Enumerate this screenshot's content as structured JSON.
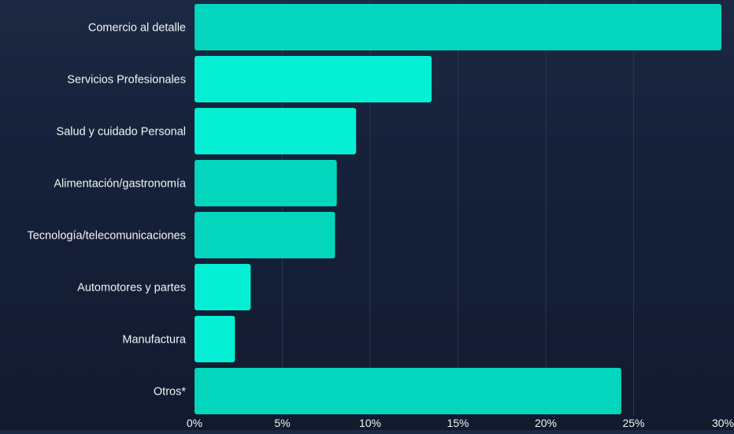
{
  "chart_data": {
    "type": "bar",
    "orientation": "horizontal",
    "title": "",
    "xlabel": "",
    "ylabel": "",
    "categories": [
      "Comercio al detalle",
      "Servicios Profesionales",
      "Salud y cuidado Personal",
      "Alimentación/gastronomía",
      "Tecnología/telecomunicaciones",
      "Automotores y partes",
      "Manufactura",
      "Otros*"
    ],
    "values": [
      30.0,
      13.5,
      9.2,
      8.1,
      8.0,
      3.2,
      2.3,
      24.3
    ],
    "xlim": [
      0,
      30
    ],
    "xticks": [
      0,
      5,
      10,
      15,
      20,
      25,
      30
    ],
    "xtick_labels": [
      "0%",
      "5%",
      "10%",
      "15%",
      "20%",
      "25%",
      "30%"
    ],
    "grid": true,
    "legend": "none",
    "colors": {
      "bars": [
        "#03d6bc",
        "#05efd5",
        "#05efd5",
        "#03d6bc",
        "#03d6bc",
        "#05efd5",
        "#05efd5",
        "#03d6bc"
      ],
      "gridline": "#2a3650",
      "text": "#f2f4f7",
      "background_top": "#1c2942",
      "background_bottom": "#121a2e"
    }
  }
}
